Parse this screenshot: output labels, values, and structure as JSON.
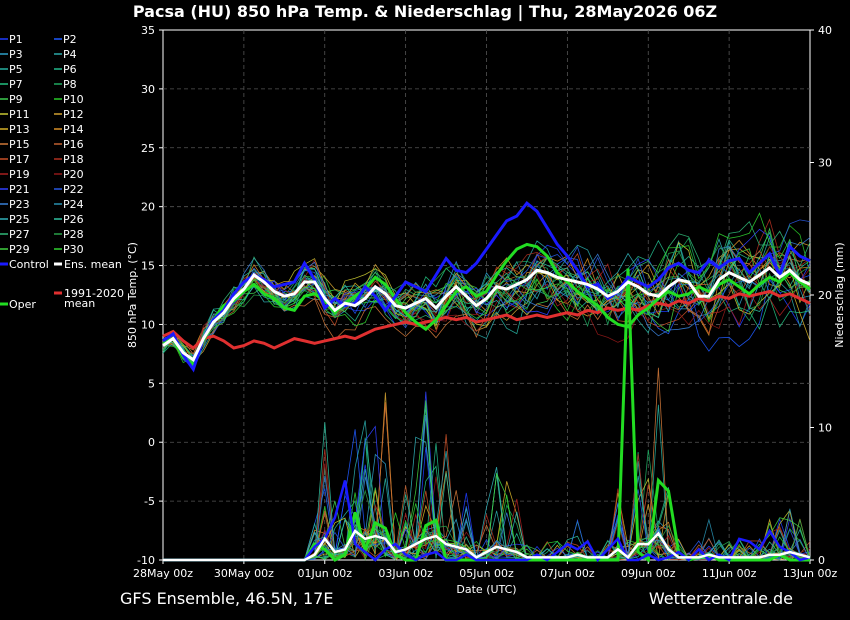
{
  "title": "Pacsa  (HU)  850 hPa Temp. & Niederschlag | Thu, 28May2026 06Z",
  "footer_left": "GFS Ensemble, 46.5N, 17E",
  "footer_right": "Wetterzentrale.de",
  "chart_data": {
    "type": "line",
    "xlabel": "Date (UTC)",
    "ylabel": "850 hPa Temp. (°C)",
    "y2label": "Niederschlag (mm)",
    "ylim": [
      -10,
      35
    ],
    "y2lim": [
      0,
      40
    ],
    "yticks": [
      -10,
      -5,
      0,
      5,
      10,
      15,
      20,
      25,
      30,
      35
    ],
    "y2ticks": [
      0,
      10,
      20,
      30,
      40
    ],
    "xlim": [
      0,
      16
    ],
    "xticks": [
      {
        "x": 0,
        "label": "28May 00z"
      },
      {
        "x": 2,
        "label": "30May 00z"
      },
      {
        "x": 4,
        "label": "01Jun 00z"
      },
      {
        "x": 6,
        "label": "03Jun 00z"
      },
      {
        "x": 8,
        "label": "05Jun 00z"
      },
      {
        "x": 10,
        "label": "07Jun 00z"
      },
      {
        "x": 12,
        "label": "09Jun 00z"
      },
      {
        "x": 14,
        "label": "11Jun 00z"
      },
      {
        "x": 16,
        "label": "13Jun 00z"
      }
    ],
    "grid": true,
    "legend_position": "left",
    "member_colors": {
      "P1": "#1f3cff",
      "P2": "#1f5aff",
      "P3": "#2ea0c8",
      "P4": "#2aa8a8",
      "P5": "#27b0a0",
      "P6": "#23b88c",
      "P7": "#22c080",
      "P8": "#1fa860",
      "P9": "#3ecc50",
      "P10": "#28c828",
      "P11": "#c8c832",
      "P12": "#d0a030",
      "P13": "#d4b028",
      "P14": "#d89028",
      "P15": "#d07838",
      "P16": "#c06030",
      "P17": "#c85028",
      "P18": "#b03020",
      "P19": "#a82020",
      "P20": "#901818",
      "P21": "#3040ff",
      "P22": "#2858e0",
      "P23": "#3880d8",
      "P24": "#2890b0",
      "P25": "#30b0b8",
      "P26": "#30c0a0",
      "P27": "#30b878",
      "P28": "#28a048",
      "P29": "#40d040",
      "P30": "#30d030",
      "Control": "#1a1aff",
      "Ens. mean": "#ffffff",
      "1991-2020 mean": "#e03030",
      "Oper": "#22dd22"
    },
    "legend": {
      "members": [
        "P1",
        "P2",
        "P3",
        "P4",
        "P5",
        "P6",
        "P7",
        "P8",
        "P9",
        "P10",
        "P11",
        "P12",
        "P13",
        "P14",
        "P15",
        "P16",
        "P17",
        "P18",
        "P19",
        "P20",
        "P21",
        "P22",
        "P23",
        "P24",
        "P25",
        "P26",
        "P27",
        "P28",
        "P29",
        "P30"
      ],
      "control": "Control",
      "ens_mean": "Ens. mean",
      "climate_mean_line1": "1991-2020",
      "climate_mean_line2": "mean",
      "oper": "Oper"
    },
    "series_temp": {
      "control_x": [
        0,
        0.25,
        0.5,
        0.75,
        1,
        1.25,
        1.5,
        1.75,
        2,
        2.25,
        2.5,
        2.75,
        3,
        3.25,
        3.5,
        3.75,
        4,
        4.25,
        4.5,
        4.75,
        5,
        5.25,
        5.5,
        5.75,
        6,
        6.25,
        6.5,
        6.75,
        7,
        7.25,
        7.5,
        7.75,
        8,
        8.25,
        8.5,
        8.75,
        9,
        9.25,
        9.5,
        9.75,
        10,
        10.25,
        10.5,
        10.75,
        11,
        11.25,
        11.5,
        11.75,
        12,
        12.25,
        12.5,
        12.75,
        13,
        13.25,
        13.5,
        13.75,
        14,
        14.25,
        14.5,
        14.75,
        15,
        15.25,
        15.5,
        15.75,
        16
      ],
      "control": [
        8.6,
        9.2,
        7.4,
        6.2,
        8.8,
        10.4,
        11.2,
        12.6,
        13.6,
        14.2,
        13.8,
        13.2,
        13.4,
        13.6,
        15.2,
        13.8,
        11.4,
        12.2,
        11.6,
        11.8,
        13.2,
        12.4,
        11.2,
        12.4,
        13.6,
        13.2,
        12.8,
        14.2,
        15.6,
        14.6,
        14.4,
        15.2,
        16.4,
        17.6,
        18.8,
        19.2,
        20.3,
        19.6,
        18.2,
        16.8,
        15.8,
        14.6,
        13.2,
        13.4,
        12.2,
        12.8,
        14.0,
        13.6,
        13.2,
        13.8,
        14.8,
        15.2,
        14.6,
        14.4,
        15.4,
        14.8,
        15.4,
        15.6,
        14.4,
        15.2,
        16.0,
        14.2,
        16.6,
        15.8,
        15.4
      ],
      "ens_mean": [
        8.2,
        8.8,
        7.6,
        7.0,
        8.8,
        10.2,
        11.0,
        12.2,
        13.0,
        14.2,
        13.6,
        12.8,
        12.4,
        12.6,
        13.6,
        13.6,
        12.2,
        11.2,
        11.8,
        11.6,
        12.2,
        13.2,
        12.6,
        11.6,
        11.4,
        11.8,
        12.2,
        11.4,
        12.4,
        13.2,
        12.4,
        11.6,
        12.2,
        13.2,
        13.0,
        13.4,
        13.8,
        14.6,
        14.4,
        14.0,
        13.8,
        13.6,
        13.4,
        13.0,
        12.4,
        12.8,
        13.6,
        13.2,
        12.6,
        12.4,
        13.2,
        13.8,
        13.6,
        12.4,
        12.4,
        13.8,
        14.4,
        14.0,
        13.6,
        14.2,
        14.8,
        14.0,
        14.6,
        13.8,
        13.4
      ],
      "climate_mean": [
        9.0,
        9.4,
        8.6,
        8.0,
        8.8,
        9.0,
        8.6,
        8.0,
        8.2,
        8.6,
        8.4,
        8.0,
        8.4,
        8.8,
        8.6,
        8.4,
        8.6,
        8.8,
        9.0,
        8.8,
        9.2,
        9.6,
        9.8,
        10.0,
        10.2,
        10.0,
        10.2,
        10.4,
        10.6,
        10.4,
        10.6,
        10.2,
        10.4,
        10.6,
        10.8,
        10.4,
        10.6,
        10.8,
        10.6,
        10.8,
        11.0,
        10.8,
        11.2,
        11.0,
        11.4,
        11.2,
        11.4,
        11.2,
        11.6,
        11.8,
        11.6,
        12.0,
        11.8,
        12.2,
        12.0,
        12.4,
        12.2,
        12.6,
        12.4,
        12.6,
        12.8,
        12.4,
        12.6,
        12.2,
        11.8
      ],
      "oper": [
        8.4,
        8.8,
        7.2,
        6.6,
        8.6,
        10.4,
        11.6,
        12.0,
        12.8,
        13.4,
        12.6,
        12.2,
        11.4,
        11.2,
        12.4,
        12.6,
        12.0,
        11.0,
        11.8,
        12.4,
        13.0,
        14.0,
        13.4,
        12.2,
        11.0,
        10.2,
        9.6,
        10.4,
        11.6,
        12.8,
        13.2,
        12.4,
        12.8,
        14.2,
        15.4,
        16.4,
        16.8,
        16.6,
        15.8,
        14.4,
        13.6,
        12.8,
        12.2,
        11.6,
        10.6,
        10.0,
        9.8,
        10.8,
        11.4,
        12.2,
        12.8,
        12.4,
        12.6,
        13.2,
        12.8,
        13.4,
        13.8,
        13.2,
        12.6,
        13.4,
        14.0,
        13.6,
        14.4,
        13.6,
        13.0
      ]
    },
    "series_precip": {
      "control": [
        0,
        0,
        0,
        0,
        0,
        0,
        0,
        0,
        0,
        0,
        0,
        0,
        0,
        0,
        0,
        1.0,
        1.6,
        3.2,
        6.0,
        1.2,
        0.6,
        0,
        0.8,
        1.2,
        0.4,
        0,
        0.4,
        0.6,
        0,
        0,
        0.4,
        0,
        0,
        0,
        0,
        0,
        0,
        0.4,
        0,
        0.6,
        1.2,
        0.8,
        1.4,
        0,
        0.8,
        1.6,
        0,
        0,
        0.4,
        0,
        0.2,
        0.6,
        0,
        0.8,
        0,
        0.4,
        0,
        1.6,
        1.4,
        0.8,
        2.2,
        1.0,
        0.6,
        0,
        0.2
      ],
      "ens_mean": [
        0,
        0,
        0,
        0,
        0,
        0,
        0,
        0,
        0,
        0,
        0,
        0,
        0,
        0,
        0,
        0.4,
        1.6,
        0.6,
        0.8,
        2.2,
        1.6,
        1.8,
        1.6,
        0.6,
        0.8,
        1.2,
        1.6,
        1.8,
        1.2,
        1.0,
        0.8,
        0.2,
        0.6,
        1.0,
        0.8,
        0.6,
        0.2,
        0.2,
        0.2,
        0.2,
        0.2,
        0.4,
        0.2,
        0.2,
        0.2,
        0.8,
        0.2,
        1.2,
        1.2,
        2.0,
        0.8,
        0.2,
        0.2,
        0.2,
        0.4,
        0.2,
        0.2,
        0.2,
        0.2,
        0.2,
        0.4,
        0.4,
        0.6,
        0.4,
        0.2
      ],
      "oper": [
        0,
        0,
        0,
        0,
        0,
        0,
        0,
        0,
        0,
        0,
        0,
        0,
        0,
        0,
        0,
        1.2,
        0.8,
        0,
        0.4,
        3.6,
        0.8,
        2.8,
        2.4,
        0.4,
        0,
        0,
        2.6,
        3.0,
        0,
        0,
        0,
        0,
        0,
        0,
        0,
        0,
        0,
        0,
        0,
        0,
        0,
        0,
        0,
        0,
        0,
        0,
        22.0,
        0.6,
        0,
        6.0,
        5.2,
        0.6,
        0,
        0.2,
        0.4,
        0,
        0,
        0,
        0,
        0,
        0,
        0.4,
        0,
        0,
        0
      ]
    }
  }
}
